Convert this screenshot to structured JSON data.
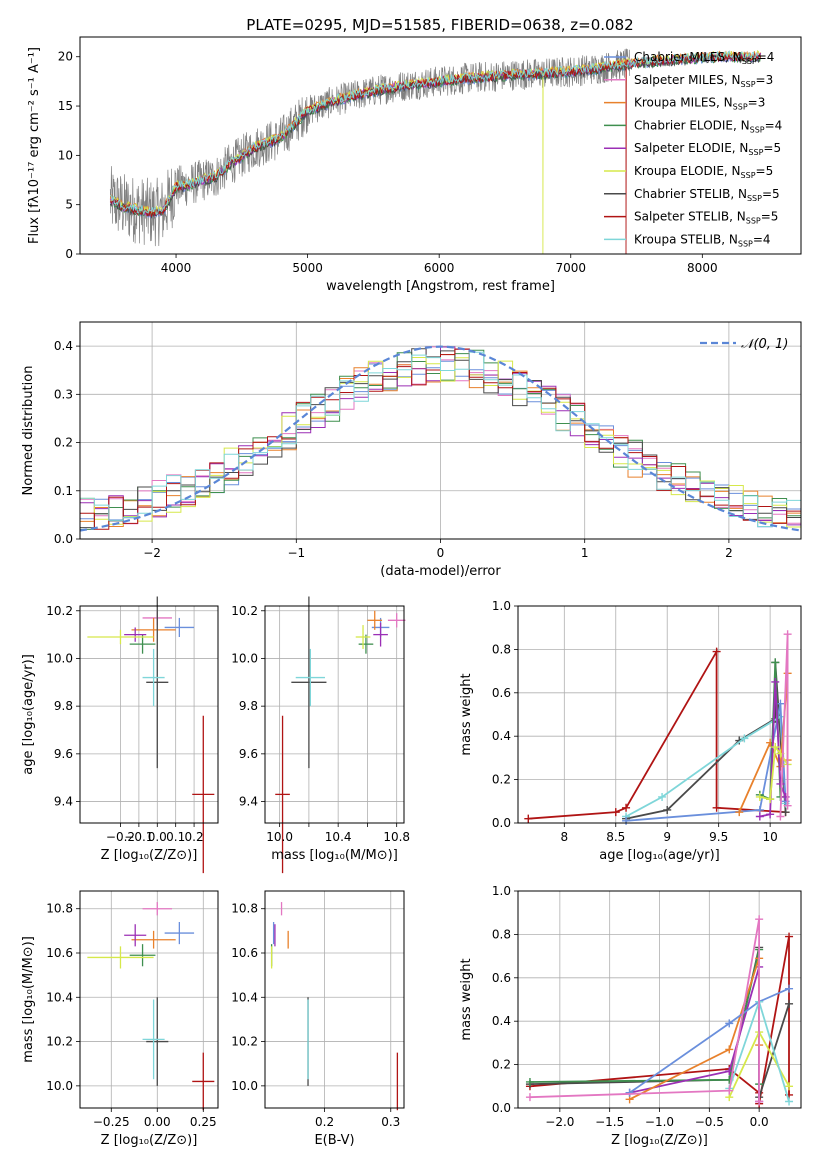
{
  "title": "PLATE=0295, MJD=51585, FIBERID=0638, z=0.082",
  "colors": {
    "Chabrier MILES": "#6a8fdc",
    "Salpeter MILES": "#e377c2",
    "Kroupa MILES": "#e8812c",
    "Chabrier ELODIE": "#3f8f4f",
    "Salpeter ELODIE": "#9b2fb5",
    "Kroupa ELODIE": "#d6e84a",
    "Chabrier STELIB": "#4a4a4a",
    "Salpeter STELIB": "#b01414",
    "Kroupa STELIB": "#7fd6d9",
    "data": "#808080",
    "normal": "#5a86d6"
  },
  "legend": [
    {
      "label": "Chabrier MILES, N",
      "sub": "SSP",
      "tail": "=4",
      "model": "Chabrier MILES"
    },
    {
      "label": "Salpeter MILES, N",
      "sub": "SSP",
      "tail": "=3",
      "model": "Salpeter MILES"
    },
    {
      "label": "Kroupa MILES, N",
      "sub": "SSP",
      "tail": "=3",
      "model": "Kroupa MILES"
    },
    {
      "label": "Chabrier ELODIE, N",
      "sub": "SSP",
      "tail": "=4",
      "model": "Chabrier ELODIE"
    },
    {
      "label": "Salpeter ELODIE, N",
      "sub": "SSP",
      "tail": "=5",
      "model": "Salpeter ELODIE"
    },
    {
      "label": "Kroupa ELODIE, N",
      "sub": "SSP",
      "tail": "=5",
      "model": "Kroupa ELODIE"
    },
    {
      "label": "Chabrier STELIB, N",
      "sub": "SSP",
      "tail": "=5",
      "model": "Chabrier STELIB"
    },
    {
      "label": "Salpeter STELIB, N",
      "sub": "SSP",
      "tail": "=5",
      "model": "Salpeter STELIB"
    },
    {
      "label": "Kroupa STELIB, N",
      "sub": "SSP",
      "tail": "=4",
      "model": "Kroupa STELIB"
    }
  ],
  "chart_data": [
    {
      "id": "spectrum",
      "type": "line",
      "xlabel": "wavelength [Angstrom, rest frame]",
      "ylabel": "Flux [fλ10⁻¹⁷ erg cm⁻² s⁻¹ A⁻¹]",
      "xlim": [
        3270,
        8750
      ],
      "ylim": [
        0,
        22
      ],
      "xticks": [
        4000,
        5000,
        6000,
        7000,
        8000
      ],
      "yticks": [
        0,
        5,
        10,
        15,
        20
      ],
      "grid": false,
      "legend_position": "right",
      "continuum": {
        "x": [
          3500,
          3600,
          3700,
          3800,
          3900,
          4000,
          4100,
          4200,
          4300,
          4400,
          4600,
          4800,
          5000,
          5200,
          5400,
          5600,
          5800,
          6000,
          6200,
          6400,
          6600,
          6800,
          7000,
          7200,
          7400,
          7600,
          7800,
          8000,
          8200,
          8400
        ],
        "y": [
          5.5,
          4.8,
          4.5,
          4.2,
          4.3,
          6.8,
          7.0,
          7.5,
          7.8,
          9.0,
          10.8,
          11.8,
          14.5,
          15.5,
          16.2,
          16.8,
          17.2,
          17.5,
          17.8,
          18.0,
          18.2,
          18.3,
          18.5,
          18.8,
          19.2,
          19.5,
          19.7,
          19.9,
          20.0,
          20.0
        ]
      },
      "data_range": [
        3500,
        7450
      ],
      "model_range": [
        3500,
        8450
      ],
      "dropouts": [
        {
          "model": "Kroupa MILES",
          "x": 6800
        },
        {
          "model": "Kroupa ELODIE",
          "x": 6790
        },
        {
          "model": "Salpeter STELIB",
          "x": 7420
        }
      ]
    },
    {
      "id": "residuals",
      "type": "histogram",
      "xlabel": "(data-model)/error",
      "ylabel": "Normed distribution",
      "xlim": [
        -2.5,
        2.5
      ],
      "ylim": [
        0,
        0.45
      ],
      "xticks": [
        -2,
        -1,
        0,
        1,
        2
      ],
      "yticks": [
        0.0,
        0.1,
        0.2,
        0.3,
        0.4
      ],
      "grid": true,
      "legend": "𝒩(0, 1)",
      "bin_width": 0.1,
      "bin_start": -2.5
    },
    {
      "id": "Z_vs_age",
      "type": "errorbar",
      "xlabel": "Z [log₁₀(Z/Z⊙)]",
      "ylabel": "age  [log₁₀(age/yr)]",
      "xlim": [
        -0.42,
        0.33
      ],
      "ylim": [
        9.31,
        10.22
      ],
      "xticks": [
        -0.2,
        -0.1,
        0.0,
        0.1,
        0.2
      ],
      "xticklabels": [
        "−0.2",
        "−0.1",
        "0.0",
        "0.1",
        "0.2"
      ],
      "yticks": [
        9.4,
        9.6,
        9.8,
        10.0,
        10.2
      ],
      "grid": true,
      "points": [
        {
          "model": "Chabrier MILES",
          "x": 0.12,
          "xerr": 0.08,
          "y": 10.13,
          "yerr": 0.04
        },
        {
          "model": "Salpeter MILES",
          "x": 0.0,
          "xerr": 0.08,
          "y": 10.17,
          "yerr": 0.03
        },
        {
          "model": "Kroupa MILES",
          "x": -0.02,
          "xerr": 0.12,
          "y": 10.12,
          "yerr": 0.05
        },
        {
          "model": "Chabrier ELODIE",
          "x": -0.08,
          "xerr": 0.07,
          "y": 10.06,
          "yerr": 0.04
        },
        {
          "model": "Salpeter ELODIE",
          "x": -0.12,
          "xerr": 0.06,
          "y": 10.1,
          "yerr": 0.03
        },
        {
          "model": "Kroupa ELODIE",
          "x": -0.2,
          "xerr": 0.18,
          "y": 10.09,
          "yerr": 0.03
        },
        {
          "model": "Chabrier STELIB",
          "x": 0.0,
          "xerr": 0.06,
          "y": 9.9,
          "yerr": 0.36
        },
        {
          "model": "Salpeter STELIB",
          "x": 0.25,
          "xerr": 0.06,
          "y": 9.43,
          "yerr": 0.33
        },
        {
          "model": "Kroupa STELIB",
          "x": -0.02,
          "xerr": 0.06,
          "y": 9.92,
          "yerr": 0.12
        }
      ]
    },
    {
      "id": "mass_vs_age",
      "type": "errorbar",
      "xlabel": "mass [log₁₀(M/M⊙)]",
      "ylabel": "",
      "xlim": [
        9.9,
        10.85
      ],
      "ylim": [
        9.31,
        10.22
      ],
      "xticks": [
        10.0,
        10.2,
        10.4,
        10.6,
        10.8
      ],
      "xticklabels": [
        "10.0",
        "",
        "10.4",
        "",
        "10.8"
      ],
      "yticks": [
        9.4,
        9.6,
        9.8,
        10.0,
        10.2
      ],
      "grid": true,
      "points": [
        {
          "model": "Chabrier MILES",
          "x": 10.69,
          "xerr": 0.06,
          "y": 10.13,
          "yerr": 0.04
        },
        {
          "model": "Salpeter MILES",
          "x": 10.8,
          "xerr": 0.06,
          "y": 10.16,
          "yerr": 0.03
        },
        {
          "model": "Kroupa MILES",
          "x": 10.65,
          "xerr": 0.05,
          "y": 10.16,
          "yerr": 0.04
        },
        {
          "model": "Chabrier ELODIE",
          "x": 10.59,
          "xerr": 0.05,
          "y": 10.06,
          "yerr": 0.04
        },
        {
          "model": "Salpeter ELODIE",
          "x": 10.69,
          "xerr": 0.05,
          "y": 10.1,
          "yerr": 0.05
        },
        {
          "model": "Kroupa ELODIE",
          "x": 10.57,
          "xerr": 0.05,
          "y": 10.09,
          "yerr": 0.05
        },
        {
          "model": "Chabrier STELIB",
          "x": 10.2,
          "xerr": 0.12,
          "y": 9.9,
          "yerr": 0.36
        },
        {
          "model": "Salpeter STELIB",
          "x": 10.02,
          "xerr": 0.05,
          "y": 9.43,
          "yerr": 0.33
        },
        {
          "model": "Kroupa STELIB",
          "x": 10.21,
          "xerr": 0.1,
          "y": 9.92,
          "yerr": 0.12
        }
      ]
    },
    {
      "id": "age_weights",
      "type": "line",
      "xlabel": "age  [log₁₀(age/yr)]",
      "ylabel": "mass weight",
      "xlim": [
        7.55,
        10.3
      ],
      "ylim": [
        0,
        1
      ],
      "xticks": [
        8.0,
        8.5,
        9.0,
        9.5,
        10.0
      ],
      "yticks": [
        0.0,
        0.2,
        0.4,
        0.6,
        0.8,
        1.0
      ],
      "grid": true,
      "series": [
        {
          "model": "Salpeter STELIB",
          "x": [
            7.65,
            8.5,
            8.6,
            9.48,
            9.48,
            10.15
          ],
          "y": [
            0.02,
            0.05,
            0.07,
            0.79,
            0.07,
            0.05
          ]
        },
        {
          "model": "Chabrier STELIB",
          "x": [
            8.6,
            9.0,
            9.7,
            10.05,
            10.05,
            10.15
          ],
          "y": [
            0.02,
            0.06,
            0.38,
            0.48,
            0.74,
            0.05
          ]
        },
        {
          "model": "Kroupa STELIB",
          "x": [
            8.6,
            8.95,
            9.75,
            10.1,
            10.15
          ],
          "y": [
            0.03,
            0.12,
            0.39,
            0.49,
            0.09
          ]
        },
        {
          "model": "Chabrier MILES",
          "x": [
            8.6,
            9.9,
            10.1,
            10.15
          ],
          "y": [
            0.01,
            0.06,
            0.55,
            0.1
          ]
        },
        {
          "model": "Kroupa MILES",
          "x": [
            9.7,
            10.0,
            10.1,
            10.17,
            10.17
          ],
          "y": [
            0.05,
            0.37,
            0.26,
            0.69,
            0.29
          ]
        },
        {
          "model": "Chabrier ELODIE",
          "x": [
            9.9,
            10.0,
            10.05,
            10.1
          ],
          "y": [
            0.13,
            0.11,
            0.74,
            0.12
          ]
        },
        {
          "model": "Salpeter ELODIE",
          "x": [
            9.9,
            10.0,
            10.05,
            10.1,
            10.15
          ],
          "y": [
            0.03,
            0.04,
            0.65,
            0.18,
            0.12
          ]
        },
        {
          "model": "Kroupa ELODIE",
          "x": [
            9.9,
            10.0,
            10.05,
            10.1,
            10.17
          ],
          "y": [
            0.12,
            0.11,
            0.35,
            0.32,
            0.27
          ]
        },
        {
          "model": "Salpeter MILES",
          "x": [
            10.1,
            10.17,
            10.17
          ],
          "y": [
            0.03,
            0.87,
            0.08
          ]
        }
      ]
    },
    {
      "id": "Z_vs_mass",
      "type": "errorbar",
      "xlabel": "Z [log₁₀(Z/Z⊙)]",
      "ylabel": "mass [log₁₀(M/M⊙)]",
      "xlim": [
        -0.42,
        0.33
      ],
      "ylim": [
        9.9,
        10.88
      ],
      "xticks": [
        -0.25,
        0.0,
        0.25
      ],
      "xticklabels": [
        "−0.25",
        "0.00",
        "0.25"
      ],
      "yticks": [
        10.0,
        10.2,
        10.4,
        10.6,
        10.8
      ],
      "grid": true,
      "points": [
        {
          "model": "Chabrier MILES",
          "x": 0.12,
          "xerr": 0.08,
          "y": 10.69,
          "yerr": 0.05
        },
        {
          "model": "Salpeter MILES",
          "x": 0.0,
          "xerr": 0.08,
          "y": 10.8,
          "yerr": 0.03
        },
        {
          "model": "Kroupa MILES",
          "x": -0.02,
          "xerr": 0.12,
          "y": 10.66,
          "yerr": 0.04
        },
        {
          "model": "Chabrier ELODIE",
          "x": -0.08,
          "xerr": 0.07,
          "y": 10.59,
          "yerr": 0.05
        },
        {
          "model": "Salpeter ELODIE",
          "x": -0.12,
          "xerr": 0.06,
          "y": 10.68,
          "yerr": 0.05
        },
        {
          "model": "Kroupa ELODIE",
          "x": -0.2,
          "xerr": 0.18,
          "y": 10.58,
          "yerr": 0.05
        },
        {
          "model": "Chabrier STELIB",
          "x": 0.0,
          "xerr": 0.06,
          "y": 10.2,
          "yerr": 0.2
        },
        {
          "model": "Salpeter STELIB",
          "x": 0.25,
          "xerr": 0.06,
          "y": 10.02,
          "yerr": 0.13
        },
        {
          "model": "Kroupa STELIB",
          "x": -0.02,
          "xerr": 0.06,
          "y": 10.21,
          "yerr": 0.18
        }
      ]
    },
    {
      "id": "ebv_vs_mass",
      "type": "errorbar",
      "xlabel": "E(B-V)",
      "ylabel": "",
      "xlim": [
        0.11,
        0.32
      ],
      "ylim": [
        9.9,
        10.88
      ],
      "xticks": [
        0.2,
        0.3
      ],
      "xticklabels": [
        "0.2",
        "0.3"
      ],
      "yticks": [
        10.0,
        10.2,
        10.4,
        10.6,
        10.8
      ],
      "grid": true,
      "points": [
        {
          "model": "Chabrier MILES",
          "x": 0.123,
          "xerr": 0.0,
          "y": 10.69,
          "yerr": 0.05
        },
        {
          "model": "Salpeter MILES",
          "x": 0.135,
          "xerr": 0.0,
          "y": 10.8,
          "yerr": 0.03
        },
        {
          "model": "Kroupa MILES",
          "x": 0.145,
          "xerr": 0.0,
          "y": 10.66,
          "yerr": 0.04
        },
        {
          "model": "Chabrier ELODIE",
          "x": 0.12,
          "xerr": 0.0,
          "y": 10.59,
          "yerr": 0.05
        },
        {
          "model": "Salpeter ELODIE",
          "x": 0.125,
          "xerr": 0.0,
          "y": 10.68,
          "yerr": 0.05
        },
        {
          "model": "Kroupa ELODIE",
          "x": 0.12,
          "xerr": 0.0,
          "y": 10.58,
          "yerr": 0.05
        },
        {
          "model": "Chabrier STELIB",
          "x": 0.175,
          "xerr": 0.0,
          "y": 10.2,
          "yerr": 0.2
        },
        {
          "model": "Salpeter STELIB",
          "x": 0.31,
          "xerr": 0.0,
          "y": 10.02,
          "yerr": 0.13
        },
        {
          "model": "Kroupa STELIB",
          "x": 0.175,
          "xerr": 0.0,
          "y": 10.21,
          "yerr": 0.18
        }
      ]
    },
    {
      "id": "Z_weights",
      "type": "line",
      "xlabel": "Z [log₁₀(Z/Z⊙)]",
      "ylabel": "mass weight",
      "xlim": [
        -2.42,
        0.42
      ],
      "ylim": [
        0,
        1
      ],
      "xticks": [
        -2.0,
        -1.5,
        -1.0,
        -0.5,
        0.0
      ],
      "xticklabels": [
        "−2.0",
        "−1.5",
        "−1.0",
        "−0.5",
        "0.0"
      ],
      "yticks": [
        0.0,
        0.2,
        0.4,
        0.6,
        0.8,
        1.0
      ],
      "grid": true,
      "series": [
        {
          "model": "Salpeter STELIB",
          "x": [
            -2.3,
            -0.3,
            0.0,
            0.0,
            0.3,
            0.3
          ],
          "y": [
            0.1,
            0.18,
            0.07,
            0.02,
            0.79,
            0.06
          ]
        },
        {
          "model": "Chabrier STELIB",
          "x": [
            -2.3,
            -0.3,
            0.0,
            0.0,
            0.3
          ],
          "y": [
            0.11,
            0.13,
            0.74,
            0.05,
            0.48
          ]
        },
        {
          "model": "Chabrier ELODIE",
          "x": [
            -2.3,
            -0.3,
            0.0,
            0.0
          ],
          "y": [
            0.12,
            0.13,
            0.73,
            0.11
          ]
        },
        {
          "model": "Salpeter ELODIE",
          "x": [
            -1.3,
            -0.3,
            0.0,
            0.0
          ],
          "y": [
            0.07,
            0.17,
            0.65,
            0.03
          ]
        },
        {
          "model": "Kroupa MILES",
          "x": [
            -1.3,
            -0.3,
            0.0,
            0.0
          ],
          "y": [
            0.04,
            0.27,
            0.69,
            0.29
          ]
        },
        {
          "model": "Chabrier MILES",
          "x": [
            -1.3,
            -0.3,
            0.0,
            0.3
          ],
          "y": [
            0.07,
            0.39,
            0.49,
            0.55
          ]
        },
        {
          "model": "Kroupa ELODIE",
          "x": [
            -0.3,
            0.0,
            0.3
          ],
          "y": [
            0.05,
            0.35,
            0.1
          ]
        },
        {
          "model": "Kroupa STELIB",
          "x": [
            -0.3,
            0.0,
            0.3
          ],
          "y": [
            0.09,
            0.49,
            0.03
          ]
        },
        {
          "model": "Salpeter MILES",
          "x": [
            -2.3,
            -0.3,
            0.0,
            0.0
          ],
          "y": [
            0.05,
            0.08,
            0.87,
            0.03
          ]
        }
      ]
    }
  ]
}
